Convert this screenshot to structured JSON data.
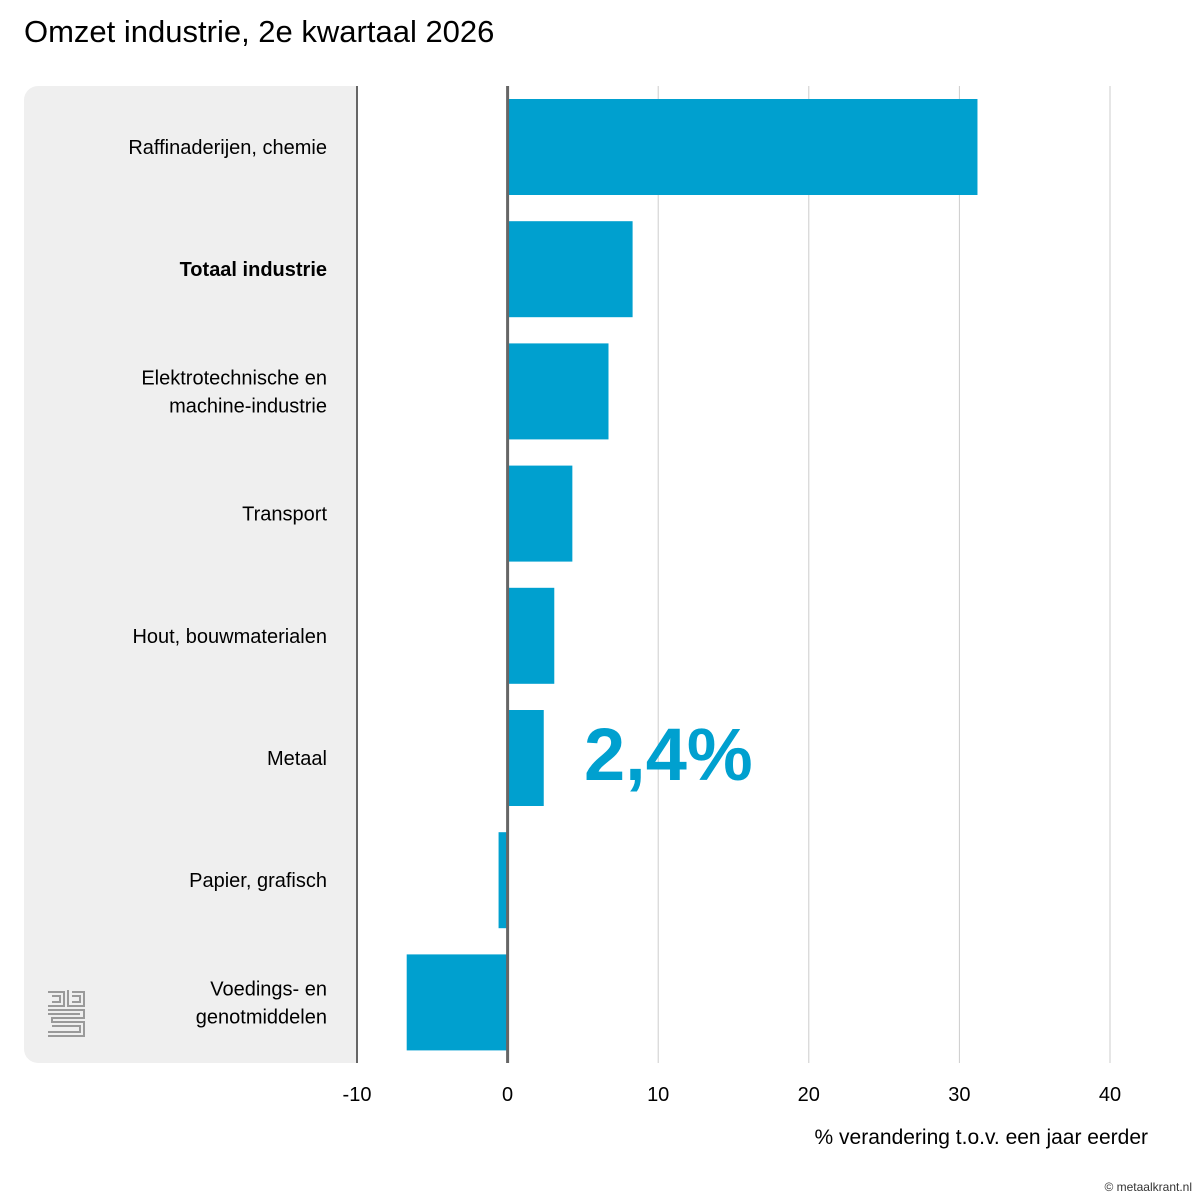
{
  "title": "Omzet industrie, 2e kwartaal 2026",
  "highlight": "2,4%",
  "copyright": "© metaalkrant.nl",
  "colors": {
    "bar": "#00a0cf",
    "panel": "#efefef",
    "grid": "#cccccc",
    "axis": "#666666"
  },
  "chart_data": {
    "type": "bar",
    "orientation": "horizontal",
    "categories": [
      [
        "Raffinaderijen, chemie"
      ],
      [
        "Totaal industrie"
      ],
      [
        "Elektrotechnische en",
        "machine-industrie"
      ],
      [
        "Transport"
      ],
      [
        "Hout, bouwmaterialen"
      ],
      [
        "Metaal"
      ],
      [
        "Papier, grafisch"
      ],
      [
        "Voedings- en",
        "genotmiddelen"
      ]
    ],
    "bold_category_index": 1,
    "values": [
      31.2,
      8.3,
      6.7,
      4.3,
      3.1,
      2.4,
      -0.6,
      -6.7
    ],
    "xlabel": "% verandering t.o.v. een jaar eerder",
    "xlim": [
      -10,
      40
    ],
    "ticks": [
      -10,
      0,
      10,
      20,
      30,
      40
    ],
    "grid": true
  }
}
